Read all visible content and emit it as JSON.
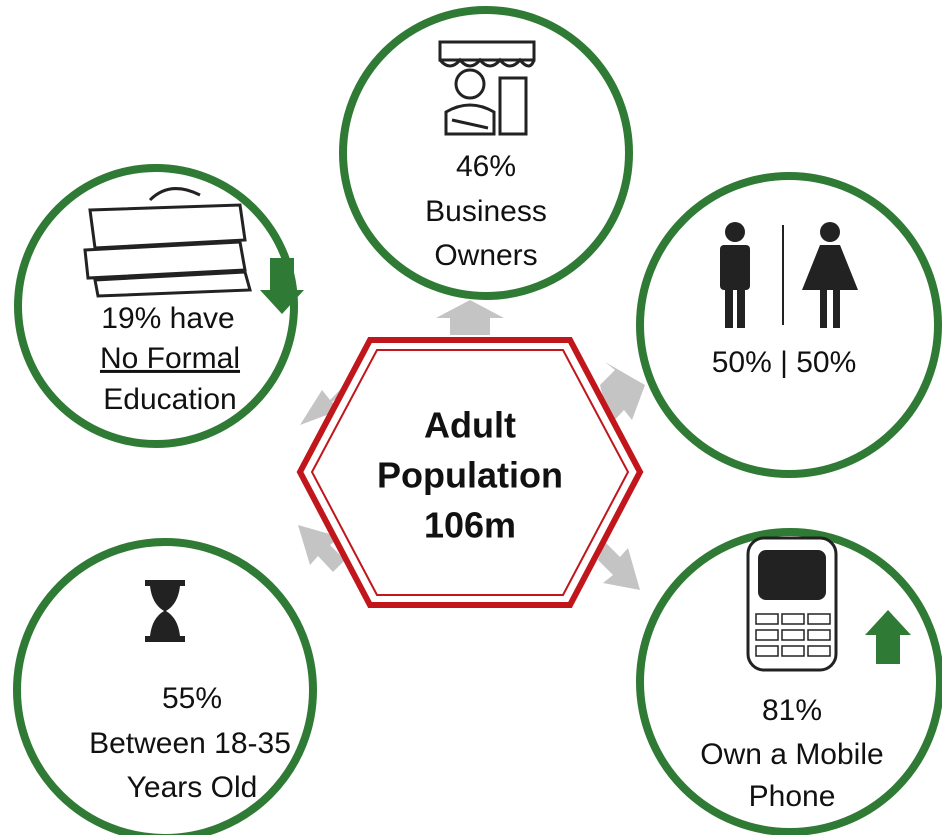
{
  "center": {
    "lines": [
      "Adult",
      "Population",
      "106m"
    ]
  },
  "items": [
    {
      "lines": [
        "46%",
        "Business",
        "Owners"
      ]
    },
    {
      "lines": [
        "19% have",
        "No Formal",
        "Education"
      ]
    },
    {
      "lines": [
        "50% | 50%"
      ]
    },
    {
      "lines": [
        "55%",
        "Between 18-35",
        "Years Old"
      ]
    },
    {
      "lines": [
        "81%",
        "Own a Mobile",
        "Phone"
      ]
    }
  ]
}
